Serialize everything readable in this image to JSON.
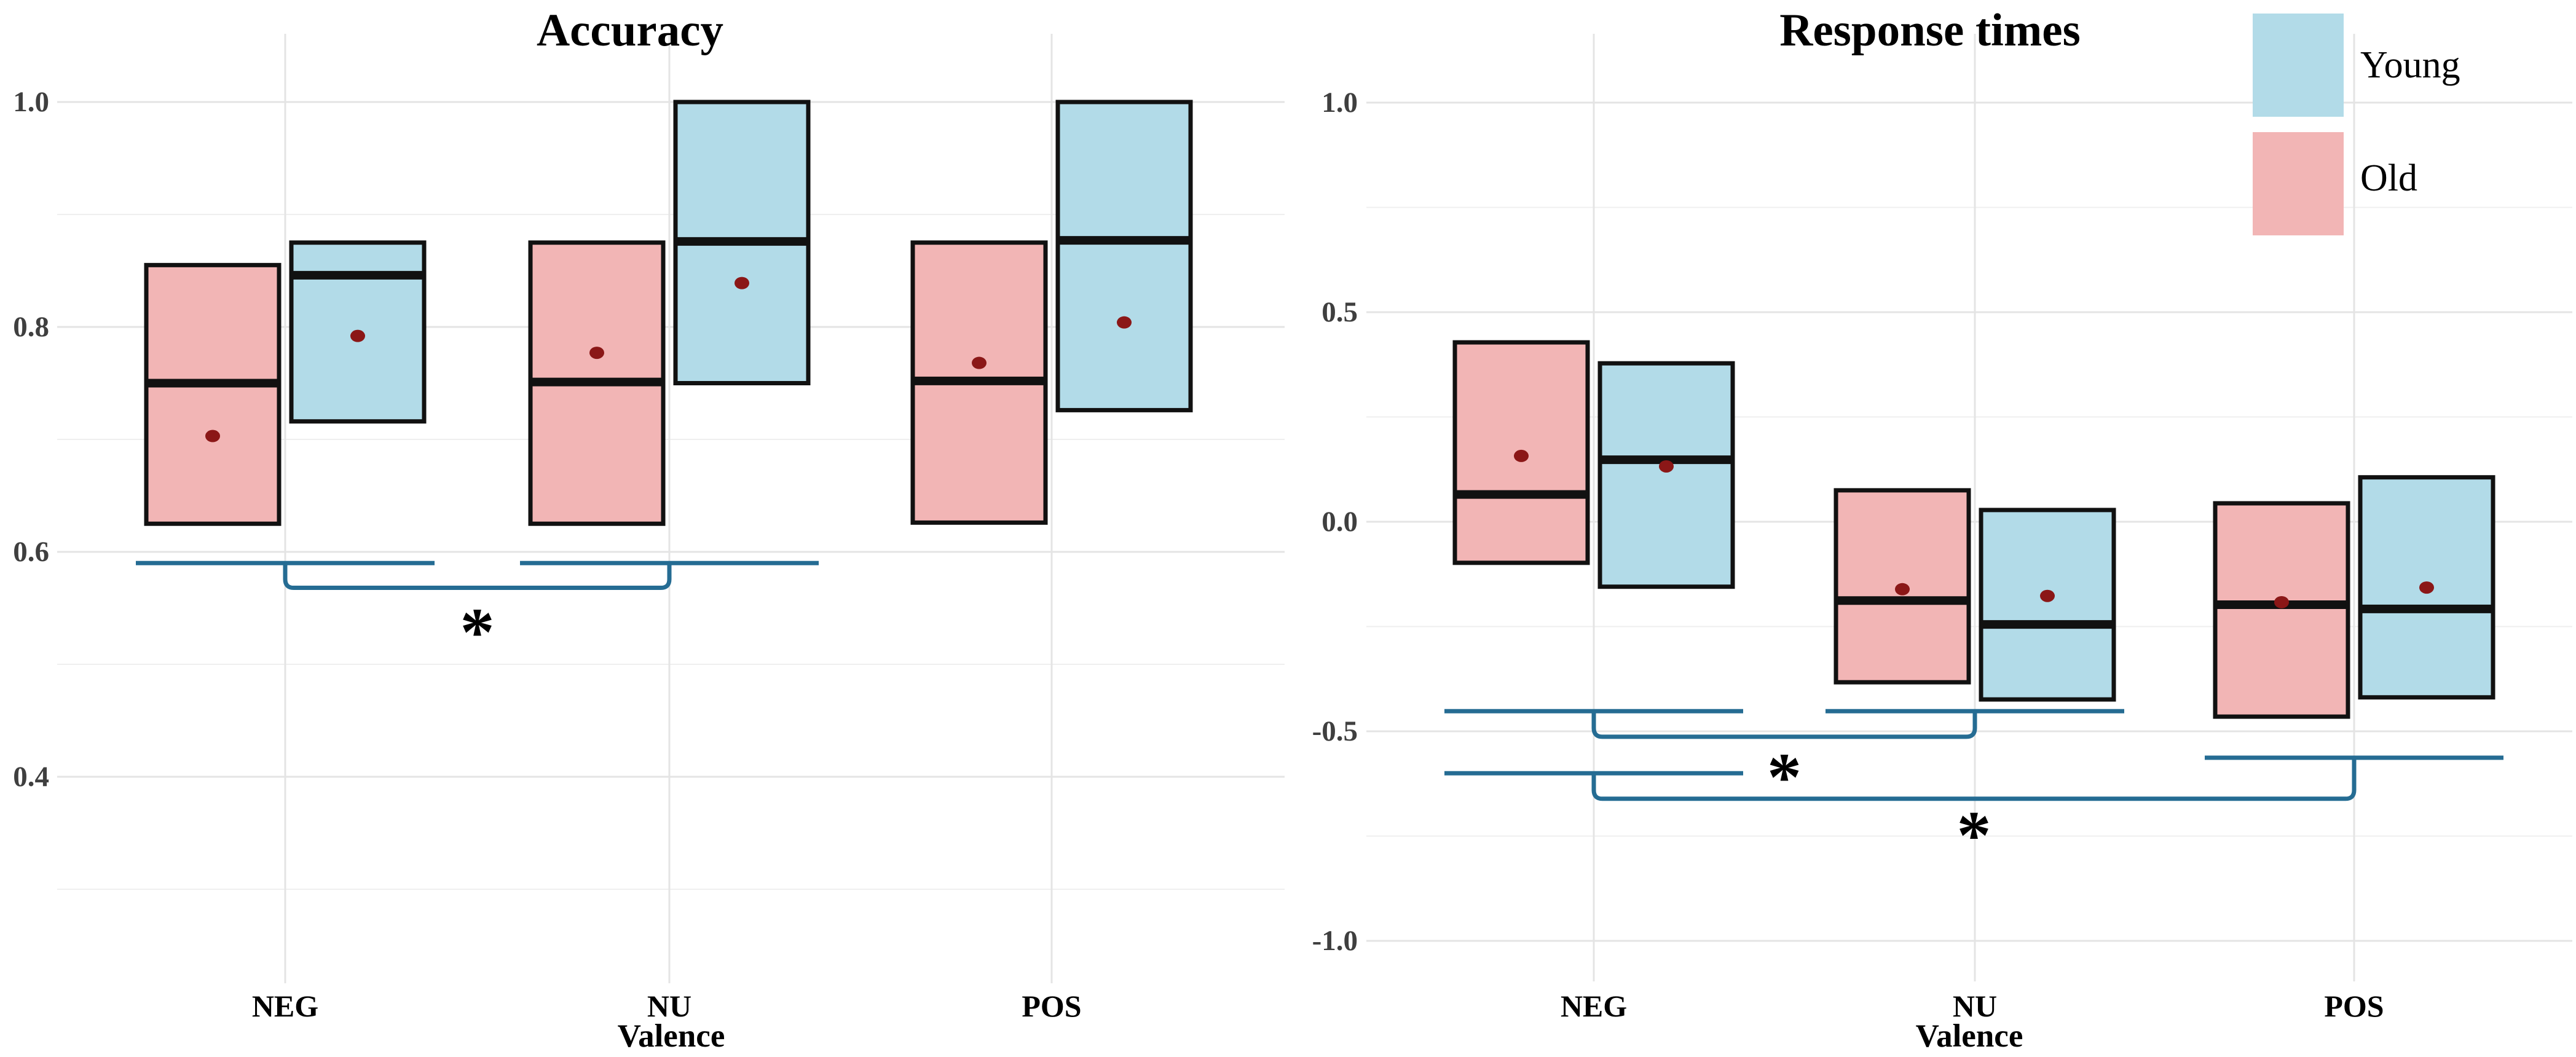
{
  "colors": {
    "young_fill": "#B2DBE8",
    "old_fill": "#F2B5B5",
    "box_border": "#111111",
    "median_line": "#111111",
    "mean_dot": "#8B1717",
    "bracket": "#256C93",
    "asterisk": "#000000",
    "grid_major": "#E4E4E4",
    "grid_minor": "#EFEFEF",
    "ytick_text": "#3F3F3F",
    "text": "#000000",
    "background": "#FFFFFF"
  },
  "legend": {
    "position": "top-right",
    "items": [
      {
        "label": "Young",
        "color_key": "young_fill"
      },
      {
        "label": "Old",
        "color_key": "old_fill"
      }
    ]
  },
  "chart_data": [
    {
      "type": "box",
      "title": "Accuracy",
      "xlabel": "Valence",
      "ylabel": "",
      "categories": [
        "NEG",
        "NU",
        "POS"
      ],
      "grid": true,
      "legend_position": "none",
      "ylim": [
        0.22,
        1.06
      ],
      "yticks": [
        {
          "v": 1.0,
          "label": "1.0"
        },
        {
          "v": 0.8,
          "label": "0.8"
        },
        {
          "v": 0.6,
          "label": "0.6"
        },
        {
          "v": 0.4,
          "label": "0.4"
        }
      ],
      "yminor": [
        0.9,
        0.7,
        0.5,
        0.3
      ],
      "series": [
        {
          "name": "Old",
          "color_key": "old_fill",
          "boxes": [
            {
              "cat": "NEG",
              "lower": 0.625,
              "upper": 0.855,
              "median": 0.75,
              "mean": 0.703
            },
            {
              "cat": "NU",
              "lower": 0.625,
              "upper": 0.875,
              "median": 0.751,
              "mean": 0.777
            },
            {
              "cat": "POS",
              "lower": 0.626,
              "upper": 0.875,
              "median": 0.752,
              "mean": 0.768
            }
          ]
        },
        {
          "name": "Young",
          "color_key": "young_fill",
          "boxes": [
            {
              "cat": "NEG",
              "lower": 0.716,
              "upper": 0.875,
              "median": 0.846,
              "mean": 0.792
            },
            {
              "cat": "NU",
              "lower": 0.75,
              "upper": 1.0,
              "median": 0.876,
              "mean": 0.839
            },
            {
              "cat": "POS",
              "lower": 0.726,
              "upper": 1.0,
              "median": 0.877,
              "mean": 0.804
            }
          ]
        }
      ],
      "significance": [
        {
          "label": "*",
          "from": "NEG",
          "to": "NU",
          "from_span_y": 0.59,
          "to_span_y": 0.59,
          "connector_y": 0.568,
          "label_y": 0.538
        }
      ]
    },
    {
      "type": "box",
      "title": "Response times",
      "xlabel": "Valence",
      "ylabel": "",
      "categories": [
        "NEG",
        "NU",
        "POS"
      ],
      "grid": true,
      "legend_position": "top-right",
      "ylim": [
        -1.09,
        1.16
      ],
      "yticks": [
        {
          "v": 1.0,
          "label": "1.0"
        },
        {
          "v": 0.5,
          "label": "0.5"
        },
        {
          "v": 0.0,
          "label": "0.0"
        },
        {
          "v": -0.5,
          "label": "-0.5"
        },
        {
          "v": -1.0,
          "label": "-1.0"
        }
      ],
      "yminor": [
        0.75,
        0.25,
        -0.25,
        -0.75
      ],
      "series": [
        {
          "name": "Old",
          "color_key": "old_fill",
          "boxes": [
            {
              "cat": "NEG",
              "lower": -0.098,
              "upper": 0.428,
              "median": 0.065,
              "mean": 0.157
            },
            {
              "cat": "NU",
              "lower": -0.383,
              "upper": 0.075,
              "median": -0.188,
              "mean": -0.161
            },
            {
              "cat": "POS",
              "lower": -0.465,
              "upper": 0.044,
              "median": -0.198,
              "mean": -0.192
            }
          ]
        },
        {
          "name": "Young",
          "color_key": "young_fill",
          "boxes": [
            {
              "cat": "NEG",
              "lower": -0.155,
              "upper": 0.378,
              "median": 0.148,
              "mean": 0.132
            },
            {
              "cat": "NU",
              "lower": -0.424,
              "upper": 0.028,
              "median": -0.245,
              "mean": -0.177
            },
            {
              "cat": "POS",
              "lower": -0.419,
              "upper": 0.106,
              "median": -0.208,
              "mean": -0.157
            }
          ]
        }
      ],
      "significance": [
        {
          "label": "*",
          "from": "NEG",
          "to": "NU",
          "from_span_y": -0.452,
          "to_span_y": -0.452,
          "connector_y": -0.513,
          "label_y": -0.584
        },
        {
          "label": "*",
          "from": "NEG",
          "to": "POS",
          "from_span_y": -0.6,
          "to_span_y": -0.563,
          "connector_y": -0.661,
          "label_y": -0.723
        }
      ]
    }
  ]
}
